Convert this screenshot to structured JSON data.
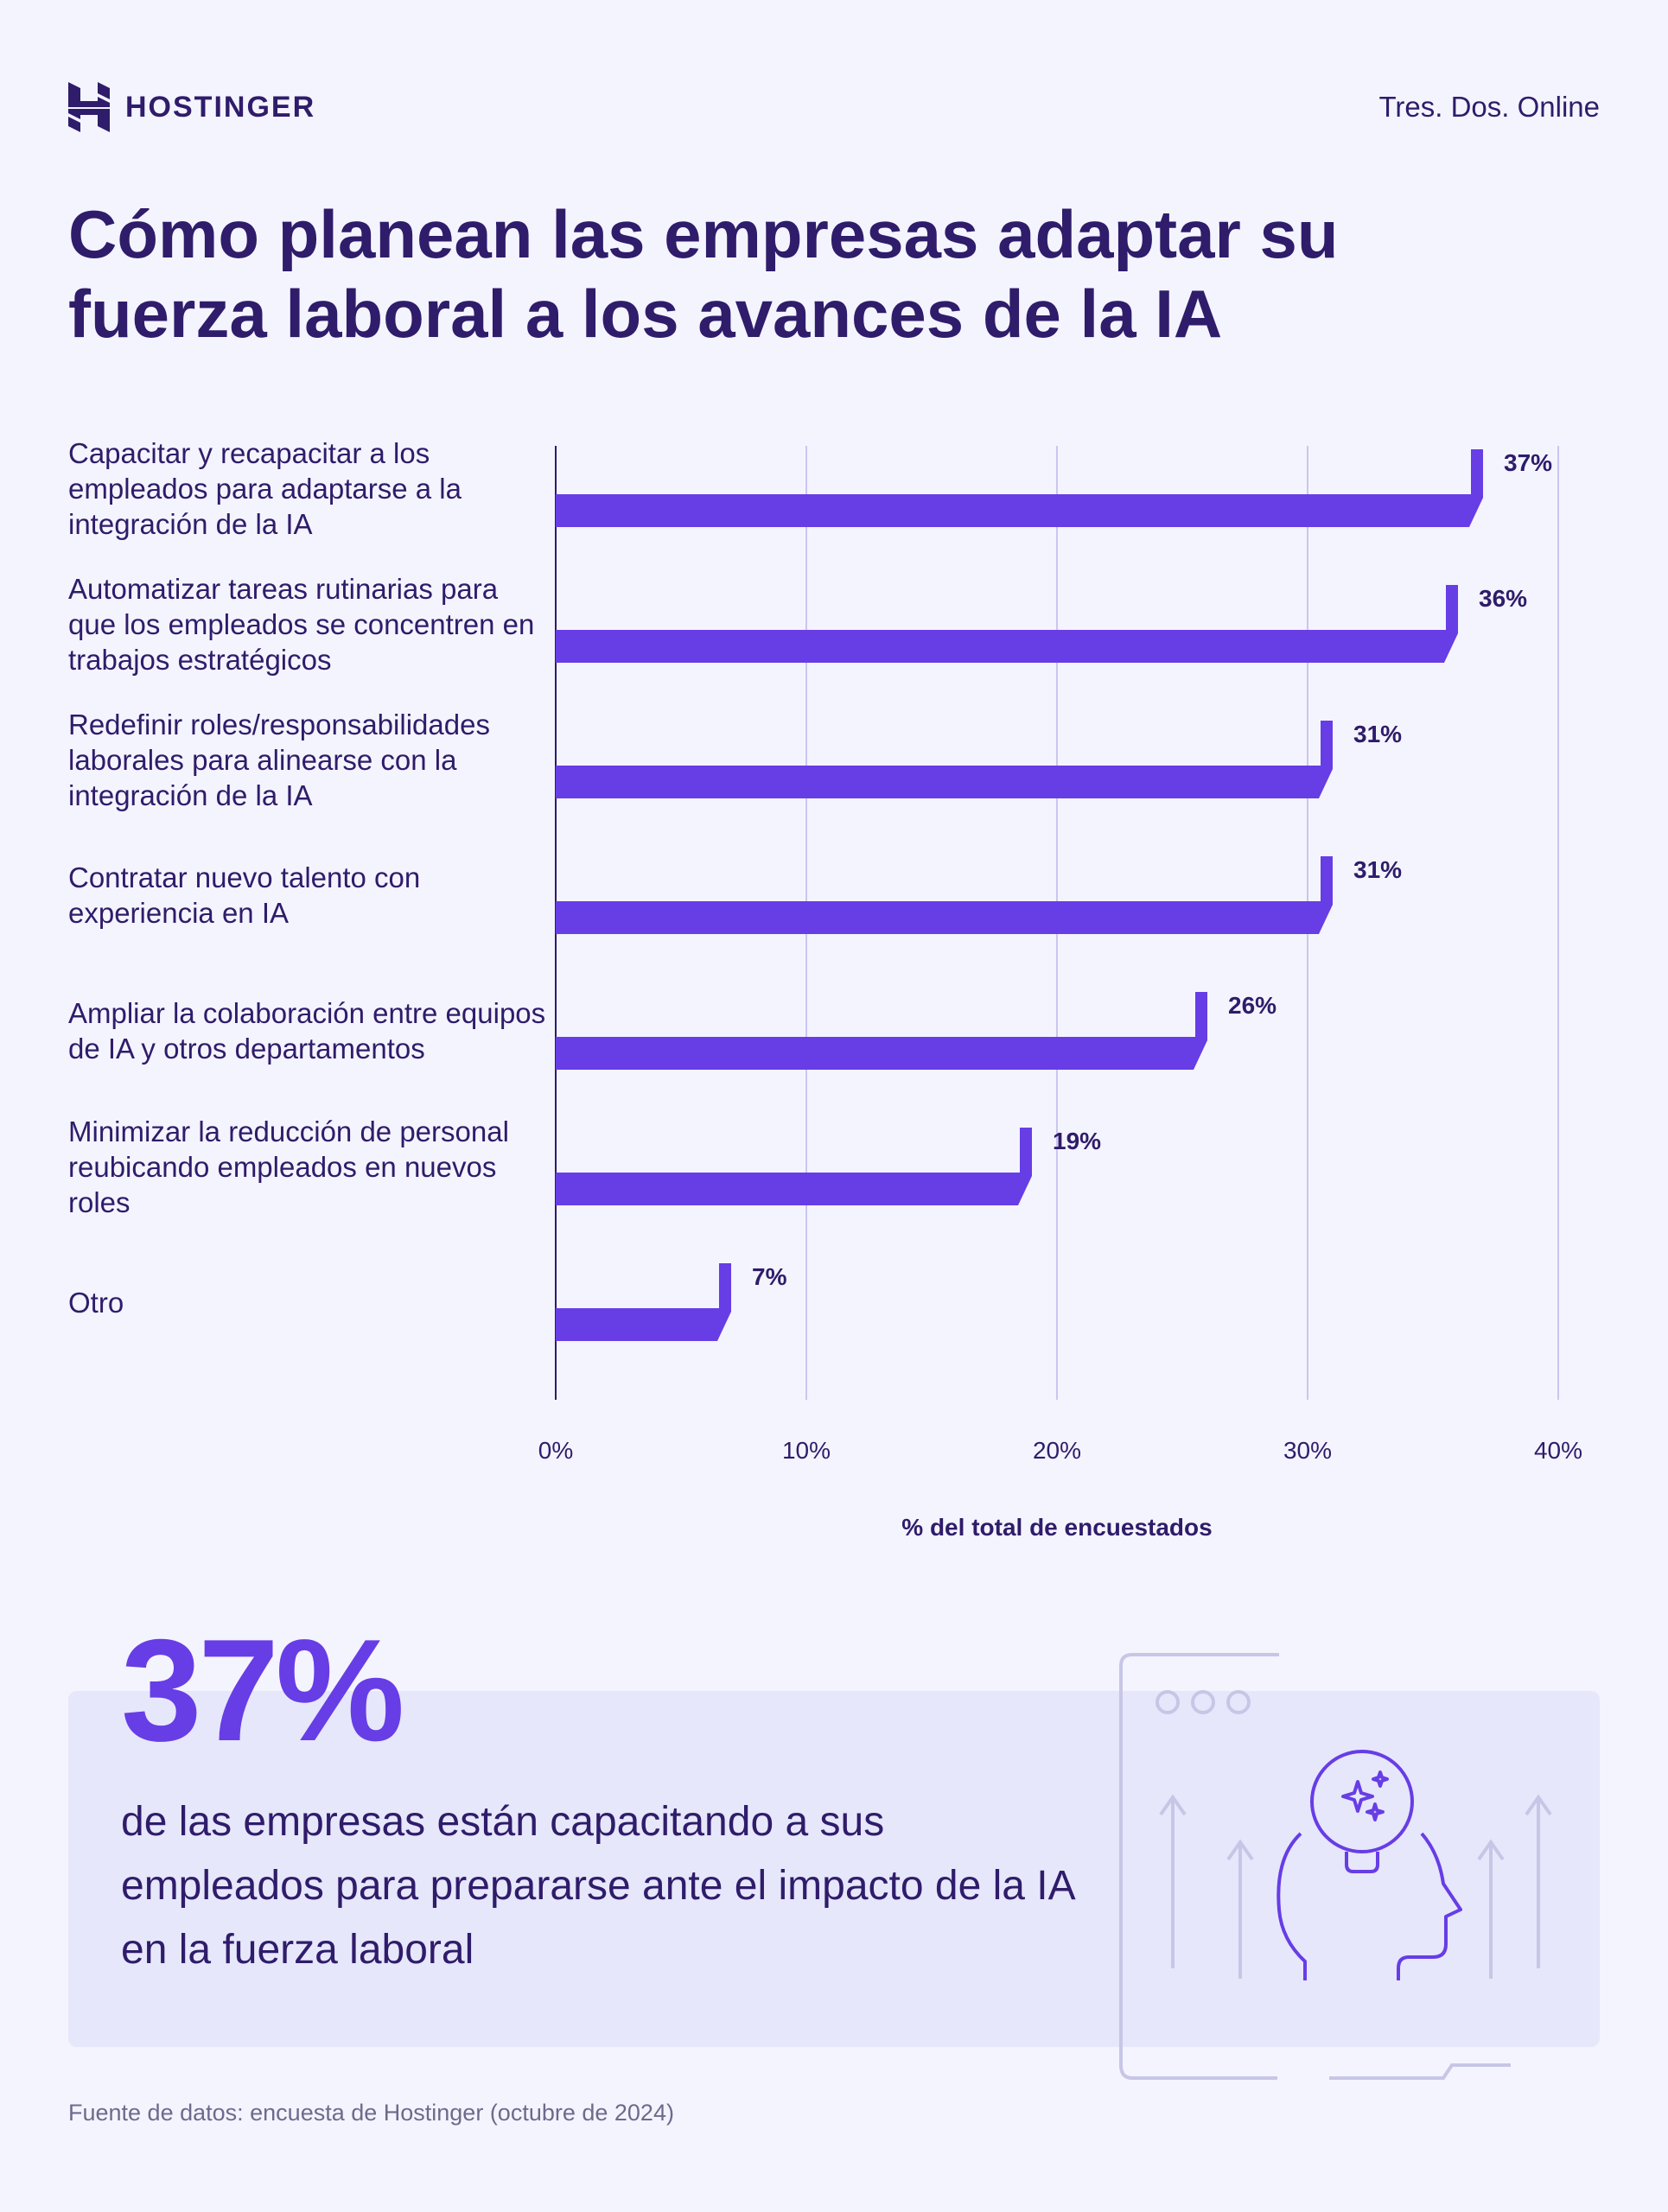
{
  "header": {
    "brand": "HOSTINGER",
    "partner": "Tres. Dos. Online"
  },
  "title": "Cómo planean las empresas adaptar su fuerza laboral a los avances de la IA",
  "chart_data": {
    "type": "bar",
    "orientation": "horizontal",
    "categories": [
      "Capacitar y recapacitar a los empleados para adaptarse a la integración de la IA",
      "Automatizar tareas rutinarias para que los empleados se concentren en trabajos estratégicos",
      "Redefinir roles/responsabilidades laborales para alinearse con la integración de la IA",
      "Contratar nuevo talento con experiencia en IA",
      "Ampliar la colaboración entre equipos de IA y otros departamentos",
      "Minimizar la reducción de personal reubicando empleados en nuevos roles",
      "Otro"
    ],
    "values": [
      37,
      36,
      31,
      31,
      26,
      19,
      7
    ],
    "data_labels": [
      "37%",
      "36%",
      "31%",
      "31%",
      "26%",
      "19%",
      "7%"
    ],
    "xlim": [
      0,
      40
    ],
    "xticks": [
      0,
      10,
      20,
      30,
      40
    ],
    "xtick_labels": [
      "0%",
      "10%",
      "20%",
      "30%",
      "40%"
    ],
    "xlabel": "% del total de encuestados",
    "grid": true,
    "bar_color": "#673de6",
    "text_color": "#2f1c6a",
    "grid_color": "#c9c6f2"
  },
  "callout": {
    "number": "37%",
    "text": "de las empresas están capacitando a sus empleados para prepararse ante el impacto de la IA en la fuerza laboral"
  },
  "source": "Fuente de datos: encuesta de Hostinger (octubre de 2024)",
  "colors": {
    "background": "#f4f4fe",
    "accent": "#673de6",
    "dark": "#2f1c6a",
    "panel": "#e6e7fb"
  }
}
